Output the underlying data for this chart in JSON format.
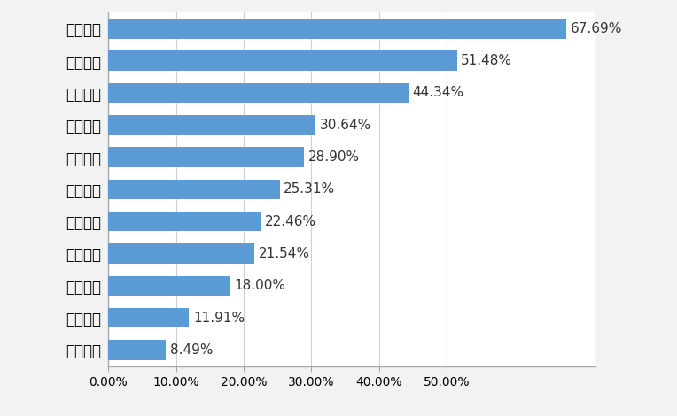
{
  "categories": [
    "就业培训",
    "子女就学",
    "公益体检",
    "事故救济",
    "安全教育",
    "困难帮扶",
    "价格指导",
    "维护权益",
    "纠纷协调",
    "应急救援",
    "法律援助"
  ],
  "values": [
    8.49,
    11.91,
    18.0,
    21.54,
    22.46,
    25.31,
    28.9,
    30.64,
    44.34,
    51.48,
    67.69
  ],
  "bar_color": "#5b9bd5",
  "background_color": "#f2f2f2",
  "plot_bg_color": "#ffffff",
  "xlim": [
    0,
    72
  ],
  "xtick_labels": [
    "0.00%",
    "10.00%",
    "20.00%",
    "30.00%",
    "40.00%",
    "50.00%"
  ],
  "xtick_values": [
    0,
    10,
    20,
    30,
    40,
    50
  ],
  "label_fontsize": 12,
  "tick_fontsize": 10,
  "value_fontsize": 11,
  "bar_height": 0.62
}
